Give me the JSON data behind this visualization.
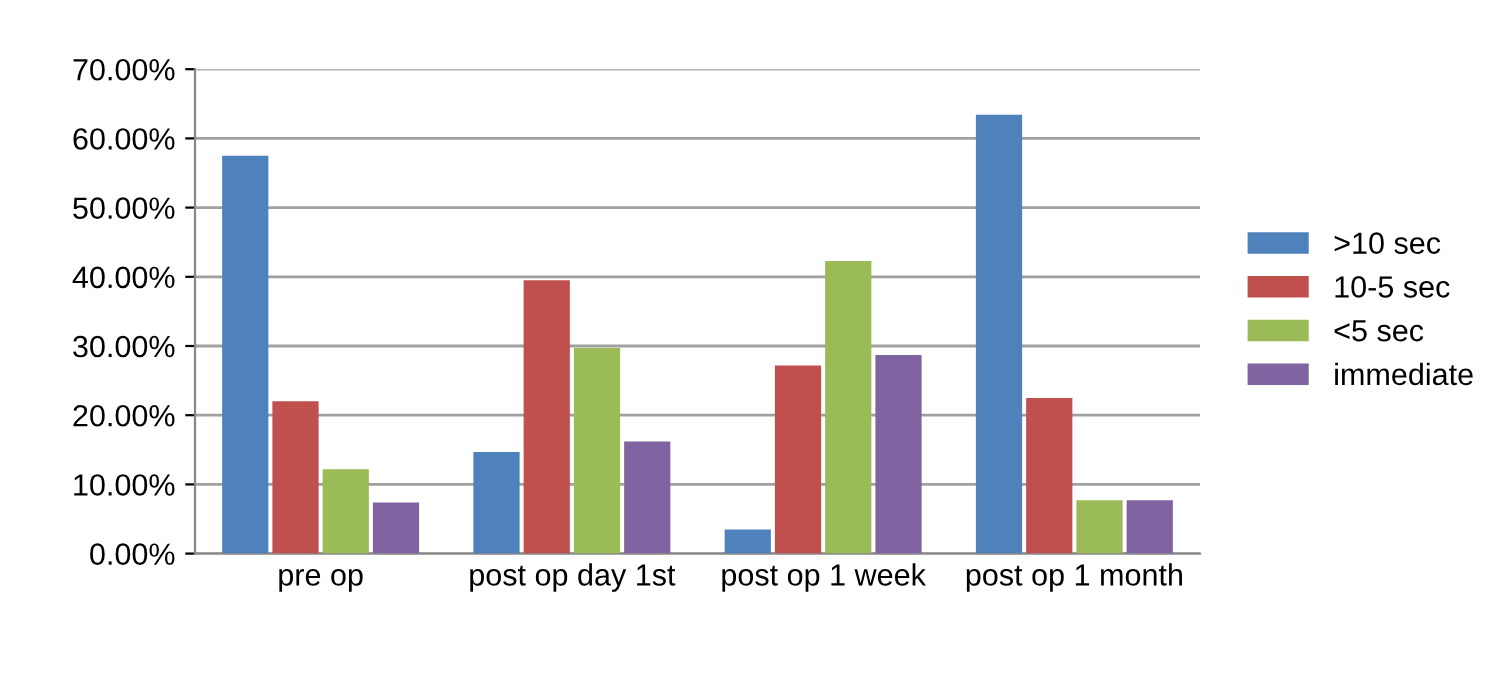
{
  "chart_data": {
    "type": "bar",
    "categories": [
      "pre op",
      "post op day 1st",
      "post op 1 week",
      "post op 1 month"
    ],
    "series": [
      {
        "name": ">10 sec",
        "color": "#4f81bd",
        "values": [
          57.5,
          14.7,
          3.5,
          63.4
        ]
      },
      {
        "name": "10-5 sec",
        "color": "#c0504d",
        "values": [
          22,
          39.5,
          27.2,
          22.5
        ]
      },
      {
        "name": "<5 sec",
        "color": "#9bbb59",
        "values": [
          12.2,
          29.7,
          42.3,
          7.7
        ]
      },
      {
        "name": "immediate",
        "color": "#8064a2",
        "values": [
          7.4,
          16.2,
          28.7,
          7.7
        ]
      }
    ],
    "ylim": [
      0,
      70
    ],
    "yticks": [
      {
        "value": 0,
        "label": "0.00%"
      },
      {
        "value": 10,
        "label": "10.00%"
      },
      {
        "value": 20,
        "label": "20.00%"
      },
      {
        "value": 30,
        "label": "30.00%"
      },
      {
        "value": 40,
        "label": "40.00%"
      },
      {
        "value": 50,
        "label": "50.00%"
      },
      {
        "value": 60,
        "label": "60.00%"
      },
      {
        "value": 70,
        "label": "70.00%"
      }
    ],
    "grid": "y",
    "legend": "right"
  }
}
